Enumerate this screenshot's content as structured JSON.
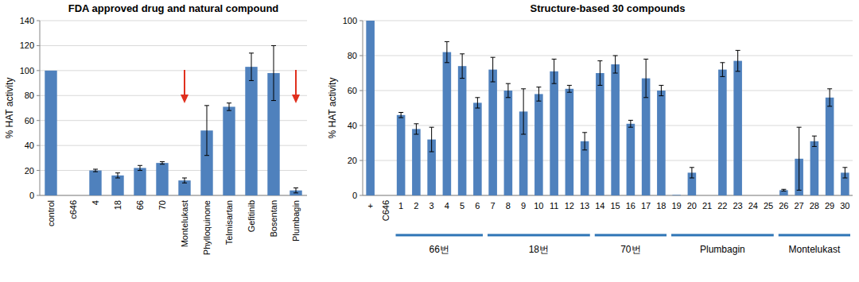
{
  "chart_data": [
    {
      "type": "bar",
      "title": "FDA approved drug and natural compound",
      "y_label": "% HAT activity",
      "categories": [
        "control",
        "c646",
        "4",
        "18",
        "66",
        "70",
        "Montelukast",
        "Phylloquinone",
        "Telmisartan",
        "Gefitinib",
        "Bosentan",
        "Plumbagin"
      ],
      "values": [
        100,
        0,
        20,
        16,
        22,
        26,
        12,
        52,
        71,
        103,
        98,
        4
      ],
      "errors": [
        0,
        0,
        1,
        2,
        2,
        1,
        2,
        20,
        3,
        11,
        22,
        2
      ],
      "color": "#4f81bd",
      "ylim": [
        0,
        140
      ],
      "yticks": [
        0,
        20,
        40,
        60,
        80,
        100,
        120,
        140
      ],
      "grid": true
    },
    {
      "type": "bar",
      "title": "Structure-based 30 compounds",
      "y_label": "% HAT activity",
      "categories": [
        "+",
        "C646",
        "1",
        "2",
        "3",
        "4",
        "5",
        "6",
        "7",
        "8",
        "9",
        "10",
        "11",
        "12",
        "13",
        "14",
        "15",
        "16",
        "17",
        "18",
        "19",
        "20",
        "21",
        "22",
        "23",
        "24",
        "25",
        "26",
        "27",
        "28",
        "29",
        "30"
      ],
      "values": [
        100,
        0,
        46,
        38,
        32,
        82,
        74,
        53,
        72,
        60,
        48,
        58,
        71,
        61,
        31,
        70,
        75,
        41,
        67,
        60,
        0.3,
        13,
        0,
        72,
        77,
        0,
        0,
        3,
        21,
        31,
        56,
        13
      ],
      "errors": [
        0,
        0,
        1.5,
        3,
        7,
        6,
        7,
        3,
        7,
        4,
        13,
        4,
        7,
        2,
        5,
        7,
        5,
        2,
        11,
        3,
        0,
        3,
        0,
        4,
        6,
        0,
        0,
        0.5,
        18,
        3,
        5,
        3
      ],
      "color": "#4f81bd",
      "groups": [
        {
          "label": "66번",
          "categories": [
            "1",
            "2",
            "3",
            "4",
            "5",
            "6"
          ]
        },
        {
          "label": "18번",
          "categories": [
            "7",
            "8",
            "9",
            "10",
            "11",
            "12",
            "13"
          ]
        },
        {
          "label": "70번",
          "categories": [
            "14",
            "15",
            "16",
            "17",
            "18"
          ]
        },
        {
          "label": "Plumbagin",
          "categories": [
            "19",
            "20",
            "21",
            "22",
            "23",
            "24",
            "25"
          ]
        },
        {
          "label": "Montelukast",
          "categories": [
            "26",
            "27",
            "28",
            "29",
            "30"
          ]
        }
      ],
      "ylim": [
        0,
        100
      ],
      "yticks": [
        0,
        20,
        40,
        60,
        80,
        100
      ],
      "grid": true
    }
  ]
}
